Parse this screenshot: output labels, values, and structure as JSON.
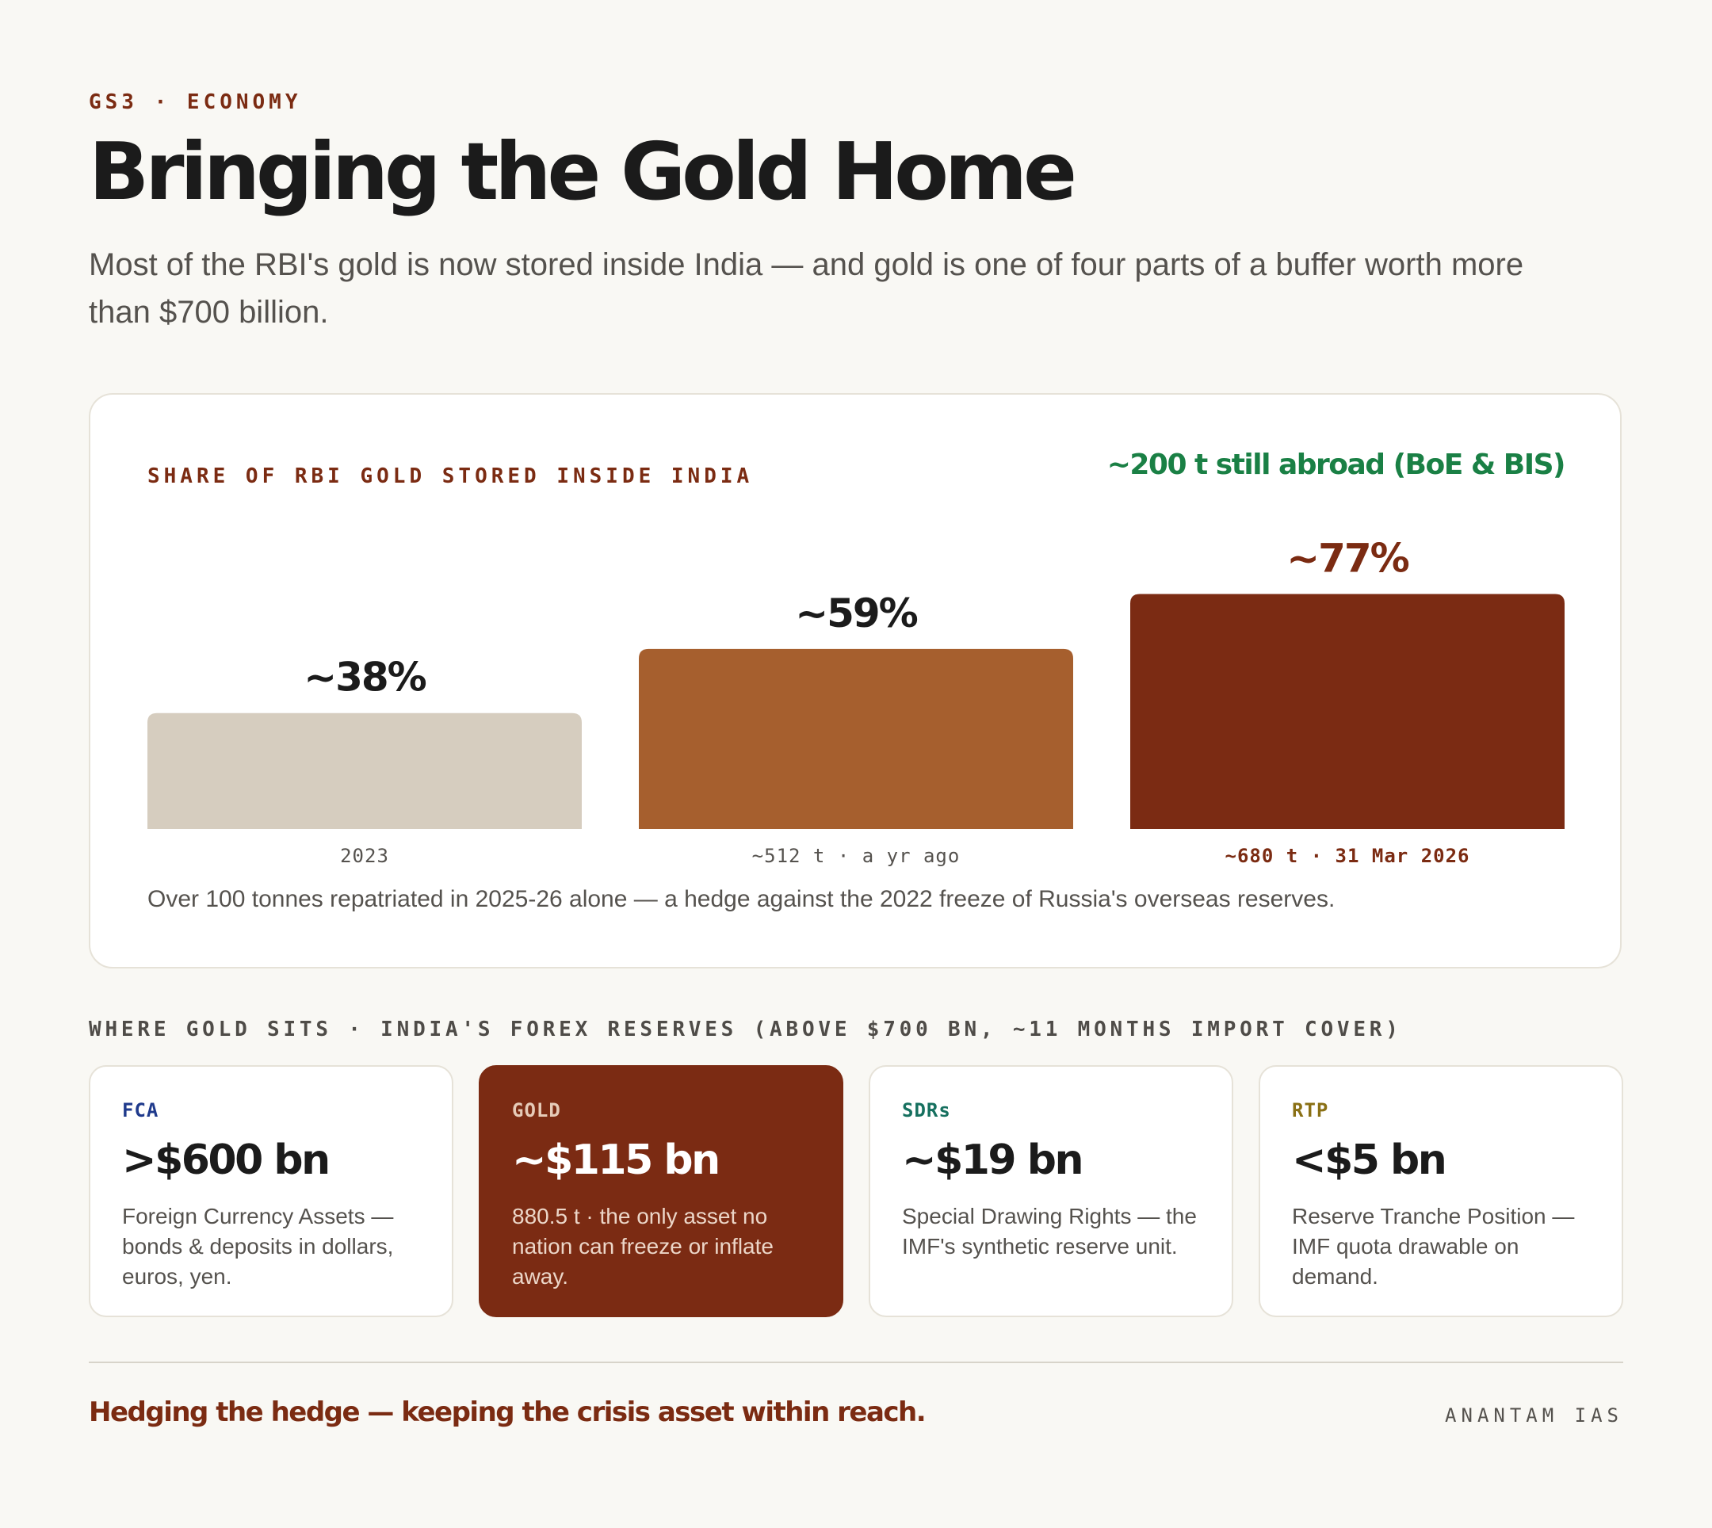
{
  "header": {
    "eyebrow": "GS3 · ECONOMY",
    "title": "Bringing the Gold Home",
    "subtitle": "Most of the RBI's gold is now stored inside India — and gold is one of four parts of a buffer worth more than $700 billion."
  },
  "chart_data": {
    "type": "bar",
    "title": "SHARE OF RBI GOLD STORED INSIDE INDIA",
    "annotation": "~200 t still abroad (BoE & BIS)",
    "categories": [
      "2023",
      "~512 t · a yr ago",
      "~680 t · 31 Mar 2026"
    ],
    "values": [
      38,
      59,
      77
    ],
    "value_labels": [
      "~38%",
      "~59%",
      "~77%"
    ],
    "colors": [
      "#d6cdbf",
      "#a65f2e",
      "#7b2b13"
    ],
    "label_colors": [
      "#1b1b1b",
      "#1b1b1b",
      "#7b2b12"
    ],
    "ylabel": "",
    "xlabel": "",
    "grid": false,
    "note": "Over 100 tonnes repatriated in 2025-26 alone — a hedge against the 2022 freeze of Russia's overseas reserves."
  },
  "reserves": {
    "label": "WHERE GOLD SITS · INDIA'S FOREX RESERVES (ABOVE $700 BN, ~11 MONTHS IMPORT COVER)",
    "cards": [
      {
        "tag": "FCA",
        "tag_color": "#1f3a8c",
        "value": ">$600 bn",
        "desc": "Foreign Currency Assets — bonds & deposits in dollars, euros, yen."
      },
      {
        "tag": "GOLD",
        "tag_color": "#e6cbb8",
        "value": "~$115 bn",
        "desc": "880.5 t · the only asset no nation can freeze or inflate away."
      },
      {
        "tag": "SDRs",
        "tag_color": "#16705f",
        "value": "~$19 bn",
        "desc": "Special Drawing Rights — the IMF's synthetic reserve unit."
      },
      {
        "tag": "RTP",
        "tag_color": "#8a7015",
        "value": "<$5 bn",
        "desc": "Reserve Tranche Position — IMF quota drawable on demand."
      }
    ]
  },
  "footer": {
    "tagline": "Hedging the hedge — keeping the crisis asset within reach.",
    "brand": "ANANTAM IAS"
  }
}
